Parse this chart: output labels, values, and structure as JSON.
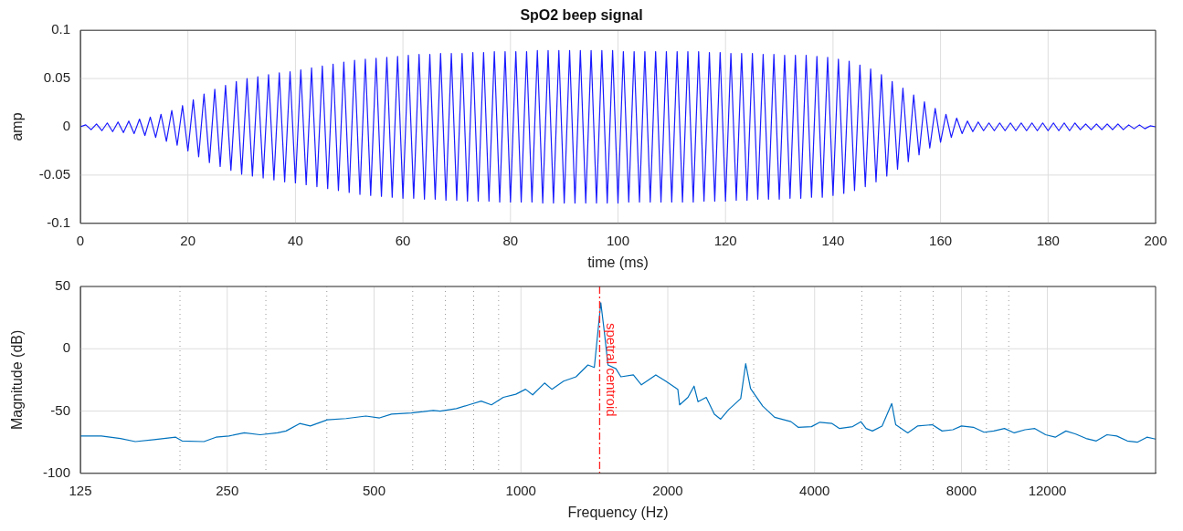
{
  "chart_data": [
    {
      "type": "line",
      "title": "SpO2 beep signal",
      "xlabel": "time (ms)",
      "ylabel": "amp",
      "color": "#1a1aff",
      "marker": "none",
      "grid": true,
      "xlim": [
        0,
        200
      ],
      "ylim": [
        -0.1,
        0.1
      ],
      "xticks": [
        0,
        20,
        40,
        60,
        80,
        100,
        120,
        140,
        160,
        180,
        200
      ],
      "yticks": [
        -0.1,
        -0.05,
        0,
        0.05,
        0.1
      ],
      "x": [
        0,
        1,
        2,
        3,
        4,
        5,
        6,
        7,
        8,
        9,
        10,
        11,
        12,
        13,
        14,
        15,
        16,
        17,
        18,
        19,
        20,
        21,
        22,
        23,
        24,
        25,
        26,
        27,
        28,
        29,
        30,
        31,
        32,
        33,
        34,
        35,
        36,
        37,
        38,
        39,
        40,
        41,
        42,
        43,
        44,
        45,
        46,
        47,
        48,
        49,
        50,
        51,
        52,
        53,
        54,
        55,
        56,
        57,
        58,
        59,
        60,
        61,
        62,
        63,
        64,
        65,
        66,
        67,
        68,
        69,
        70,
        71,
        72,
        73,
        74,
        75,
        76,
        77,
        78,
        79,
        80,
        81,
        82,
        83,
        84,
        85,
        86,
        87,
        88,
        89,
        90,
        91,
        92,
        93,
        94,
        95,
        96,
        97,
        98,
        99,
        100,
        101,
        102,
        103,
        104,
        105,
        106,
        107,
        108,
        109,
        110,
        111,
        112,
        113,
        114,
        115,
        116,
        117,
        118,
        119,
        120,
        121,
        122,
        123,
        124,
        125,
        126,
        127,
        128,
        129,
        130,
        131,
        132,
        133,
        134,
        135,
        136,
        137,
        138,
        139,
        140,
        141,
        142,
        143,
        144,
        145,
        146,
        147,
        148,
        149,
        150,
        151,
        152,
        153,
        154,
        155,
        156,
        157,
        158,
        159,
        160,
        161,
        162,
        163,
        164,
        165,
        166,
        167,
        168,
        169,
        170,
        171,
        172,
        173,
        174,
        175,
        176,
        177,
        178,
        179,
        180,
        181,
        182,
        183,
        184,
        185,
        186,
        187,
        188,
        189,
        190,
        191,
        192,
        193,
        194,
        195,
        196,
        197,
        198,
        199,
        200
      ],
      "values": [
        0,
        0.002,
        -0.003,
        0.003,
        -0.004,
        0.004,
        -0.005,
        0.005,
        -0.006,
        0.006,
        -0.007,
        0.008,
        -0.009,
        0.01,
        -0.011,
        0.013,
        -0.015,
        0.017,
        -0.019,
        0.022,
        -0.025,
        0.028,
        -0.031,
        0.034,
        -0.037,
        0.039,
        -0.041,
        0.043,
        -0.045,
        0.047,
        -0.049,
        0.05,
        -0.051,
        0.052,
        -0.053,
        0.054,
        -0.055,
        0.056,
        -0.057,
        0.057,
        -0.058,
        0.059,
        -0.06,
        0.061,
        -0.062,
        0.063,
        -0.064,
        0.065,
        -0.066,
        0.067,
        -0.068,
        0.069,
        -0.07,
        0.07,
        -0.071,
        0.071,
        -0.072,
        0.072,
        -0.073,
        0.073,
        -0.074,
        0.074,
        -0.074,
        0.075,
        -0.075,
        0.075,
        -0.075,
        0.076,
        -0.076,
        0.076,
        -0.076,
        0.076,
        -0.077,
        0.077,
        -0.077,
        0.077,
        -0.077,
        0.078,
        -0.078,
        0.078,
        -0.078,
        0.078,
        -0.078,
        0.078,
        -0.078,
        0.079,
        -0.079,
        0.079,
        -0.079,
        0.079,
        -0.079,
        0.079,
        -0.079,
        0.079,
        -0.079,
        0.079,
        -0.079,
        0.079,
        -0.079,
        0.079,
        -0.079,
        0.078,
        -0.078,
        0.078,
        -0.078,
        0.078,
        -0.078,
        0.078,
        -0.078,
        0.078,
        -0.078,
        0.078,
        -0.078,
        0.078,
        -0.078,
        0.078,
        -0.077,
        0.077,
        -0.077,
        0.077,
        -0.077,
        0.076,
        -0.076,
        0.076,
        -0.076,
        0.076,
        -0.075,
        0.075,
        -0.075,
        0.075,
        -0.075,
        0.074,
        -0.074,
        0.074,
        -0.074,
        0.074,
        -0.073,
        0.073,
        -0.073,
        0.072,
        -0.071,
        0.07,
        -0.069,
        0.068,
        -0.066,
        0.064,
        -0.062,
        0.06,
        -0.057,
        0.054,
        -0.051,
        0.047,
        -0.044,
        0.04,
        -0.036,
        0.033,
        -0.029,
        0.026,
        -0.022,
        0.019,
        -0.016,
        0.013,
        -0.011,
        0.009,
        -0.007,
        0.006,
        -0.005,
        0.005,
        -0.004,
        0.004,
        -0.004,
        0.004,
        -0.004,
        0.004,
        -0.004,
        0.004,
        -0.004,
        0.004,
        -0.004,
        0.004,
        -0.004,
        0.004,
        -0.004,
        0.004,
        -0.004,
        0.004,
        -0.003,
        0.003,
        -0.003,
        0.003,
        -0.003,
        0.003,
        -0.003,
        0.003,
        -0.003,
        0.002,
        -0.002,
        0.002,
        -0.002,
        0.001,
        0
      ]
    },
    {
      "type": "line",
      "xlabel": "Frequency (Hz)",
      "ylabel": "Magnitude (dB)",
      "color": "#0072bd",
      "marker": "none",
      "grid": true,
      "log": "x",
      "xlim": [
        125,
        20000
      ],
      "ylim": [
        -100,
        50
      ],
      "yticks": [
        -100,
        -50,
        0,
        50
      ],
      "xticks": [
        125,
        {
          "value": 200,
          "label": null
        },
        250,
        {
          "value": 300,
          "label": null
        },
        {
          "value": 400,
          "label": null
        },
        500,
        {
          "value": 600,
          "label": null
        },
        {
          "value": 700,
          "label": null
        },
        {
          "value": 800,
          "label": null
        },
        {
          "value": 900,
          "label": null
        },
        1000,
        2000,
        {
          "value": 3000,
          "label": null
        },
        4000,
        {
          "value": 5000,
          "label": null
        },
        {
          "value": 6000,
          "label": null
        },
        {
          "value": 7000,
          "label": null
        },
        8000,
        {
          "value": 9000,
          "label": null
        },
        {
          "value": 10000,
          "label": null
        },
        12000
      ],
      "ref_lines": [
        {
          "axis": "x",
          "value": 1450,
          "label": "spetral centroid",
          "color": "#ff2020",
          "line_style": "dashed"
        }
      ],
      "x": [
        125,
        138,
        151,
        162,
        177,
        196,
        202,
        224,
        237,
        252,
        271,
        292,
        317,
        330,
        352,
        370,
        401,
        438,
        481,
        513,
        543,
        596,
        631,
        661,
        683,
        737,
        782,
        829,
        870,
        920,
        976,
        1022,
        1057,
        1118,
        1157,
        1223,
        1297,
        1372,
        1414,
        1458,
        1482,
        1508,
        1566,
        1603,
        1700,
        1766,
        1890,
        1981,
        2097,
        2115,
        2200,
        2264,
        2307,
        2398,
        2492,
        2567,
        2664,
        2822,
        2889,
        2956,
        3131,
        3312,
        3577,
        3700,
        3941,
        4100,
        4344,
        4500,
        4786,
        4976,
        5100,
        5254,
        5500,
        5756,
        5866,
        6208,
        6500,
        6972,
        7300,
        7681,
        8000,
        8462,
        8900,
        9318,
        9800,
        10263,
        10800,
        11309,
        11900,
        12455,
        13100,
        13720,
        14400,
        15118,
        15900,
        16648,
        17500,
        18343,
        19200,
        20000
      ],
      "values": [
        -70,
        -70,
        -72,
        -74.5,
        -73,
        -71,
        -74,
        -74.5,
        -71,
        -70,
        -67.5,
        -69,
        -67.5,
        -66,
        -60,
        -62,
        -57,
        -56,
        -54,
        -55.5,
        -52.5,
        -51.5,
        -50.5,
        -49.5,
        -50,
        -48,
        -45,
        -42,
        -45,
        -39,
        -36.5,
        -32.5,
        -37,
        -27.5,
        -32.5,
        -26,
        -22.5,
        -13,
        -15,
        37,
        14,
        -13,
        -16,
        -22.5,
        -21,
        -29,
        -21,
        -26,
        -32.5,
        -45,
        -39,
        -30,
        -42.5,
        -39,
        -52.5,
        -56.5,
        -49,
        -40,
        -12,
        -32,
        -46,
        -55,
        -58.5,
        -63,
        -62.5,
        -59,
        -60,
        -64,
        -62.5,
        -58.5,
        -64,
        -66,
        -62,
        -44,
        -61,
        -67.5,
        -62,
        -61,
        -66,
        -65,
        -62,
        -63,
        -67,
        -66,
        -64,
        -67.5,
        -65,
        -64,
        -69,
        -71,
        -66,
        -68.5,
        -72,
        -74,
        -69,
        -70,
        -74,
        -75,
        -71,
        -72.5
      ]
    }
  ]
}
